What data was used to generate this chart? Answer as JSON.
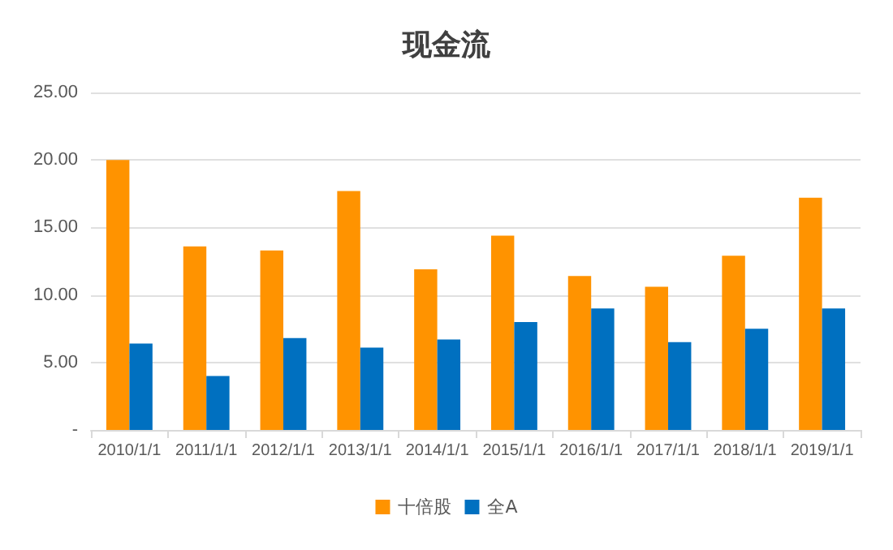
{
  "chart_data": {
    "type": "bar",
    "title": "现金流",
    "categories": [
      "2010/1/1",
      "2011/1/1",
      "2012/1/1",
      "2013/1/1",
      "2014/1/1",
      "2015/1/1",
      "2016/1/1",
      "2017/1/1",
      "2018/1/1",
      "2019/1/1"
    ],
    "series": [
      {
        "name": "十倍股",
        "color": "#ff9300",
        "values": [
          20.0,
          13.6,
          13.3,
          17.7,
          11.9,
          14.4,
          11.4,
          10.6,
          12.9,
          17.2
        ]
      },
      {
        "name": "全A",
        "color": "#0070c0",
        "values": [
          6.4,
          4.0,
          6.8,
          6.1,
          6.7,
          8.0,
          9.0,
          6.5,
          7.5,
          9.0
        ]
      }
    ],
    "ylim": [
      0,
      25
    ],
    "yticks": [
      {
        "value": 0,
        "label": "-"
      },
      {
        "value": 5,
        "label": "5.00"
      },
      {
        "value": 10,
        "label": "10.00"
      },
      {
        "value": 15,
        "label": "15.00"
      },
      {
        "value": 20,
        "label": "20.00"
      },
      {
        "value": 25,
        "label": "25.00"
      }
    ],
    "grid": "y",
    "legend": "bottom"
  }
}
